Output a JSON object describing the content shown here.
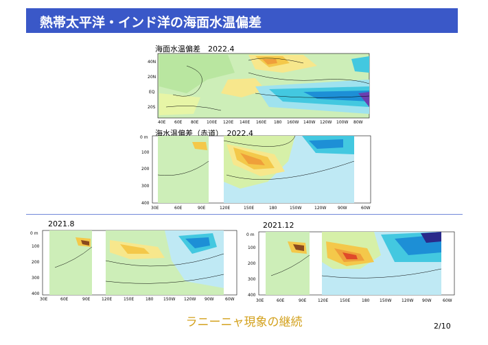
{
  "slide": {
    "title": "熱帯太平洋・インド洋の海面水温偏差",
    "caption": "ラニーニャ現象の継続",
    "page_number": "2/10"
  },
  "figures": {
    "sst_map": {
      "label": "海面水温偏差　2022.4",
      "lat_ticks": [
        "40N",
        "20N",
        "EQ",
        "20S"
      ],
      "lon_ticks": [
        "40E",
        "60E",
        "80E",
        "100E",
        "120E",
        "140E",
        "160E",
        "180",
        "160W",
        "140W",
        "120W",
        "100W",
        "80W"
      ]
    },
    "subsurface_apr": {
      "label": "海水温偏差（赤道）　2022.4",
      "depth_ticks": [
        "0 m",
        "100",
        "200",
        "300",
        "400"
      ],
      "lon_ticks": [
        "30E",
        "60E",
        "90E",
        "120E",
        "150E",
        "180",
        "150W",
        "120W",
        "90W",
        "60W"
      ]
    },
    "subsurface_aug": {
      "label": "2021.8",
      "depth_ticks": [
        "0 m",
        "100",
        "200",
        "300",
        "400"
      ],
      "lon_ticks": [
        "30E",
        "60E",
        "90E",
        "120E",
        "150E",
        "180",
        "150W",
        "120W",
        "90W",
        "60W"
      ]
    },
    "subsurface_dec": {
      "label": "2021.12",
      "depth_ticks": [
        "0 m",
        "100",
        "200",
        "300",
        "400"
      ],
      "lon_ticks": [
        "30E",
        "60E",
        "90E",
        "120E",
        "150E",
        "180",
        "150W",
        "120W",
        "90W",
        "60W"
      ]
    }
  },
  "colors": {
    "title_bar": "#3a58c8",
    "caption": "#d3a11d",
    "warm": "#f4c84a",
    "cool": "#43c8e0",
    "neutral": "#c9ecb0"
  }
}
